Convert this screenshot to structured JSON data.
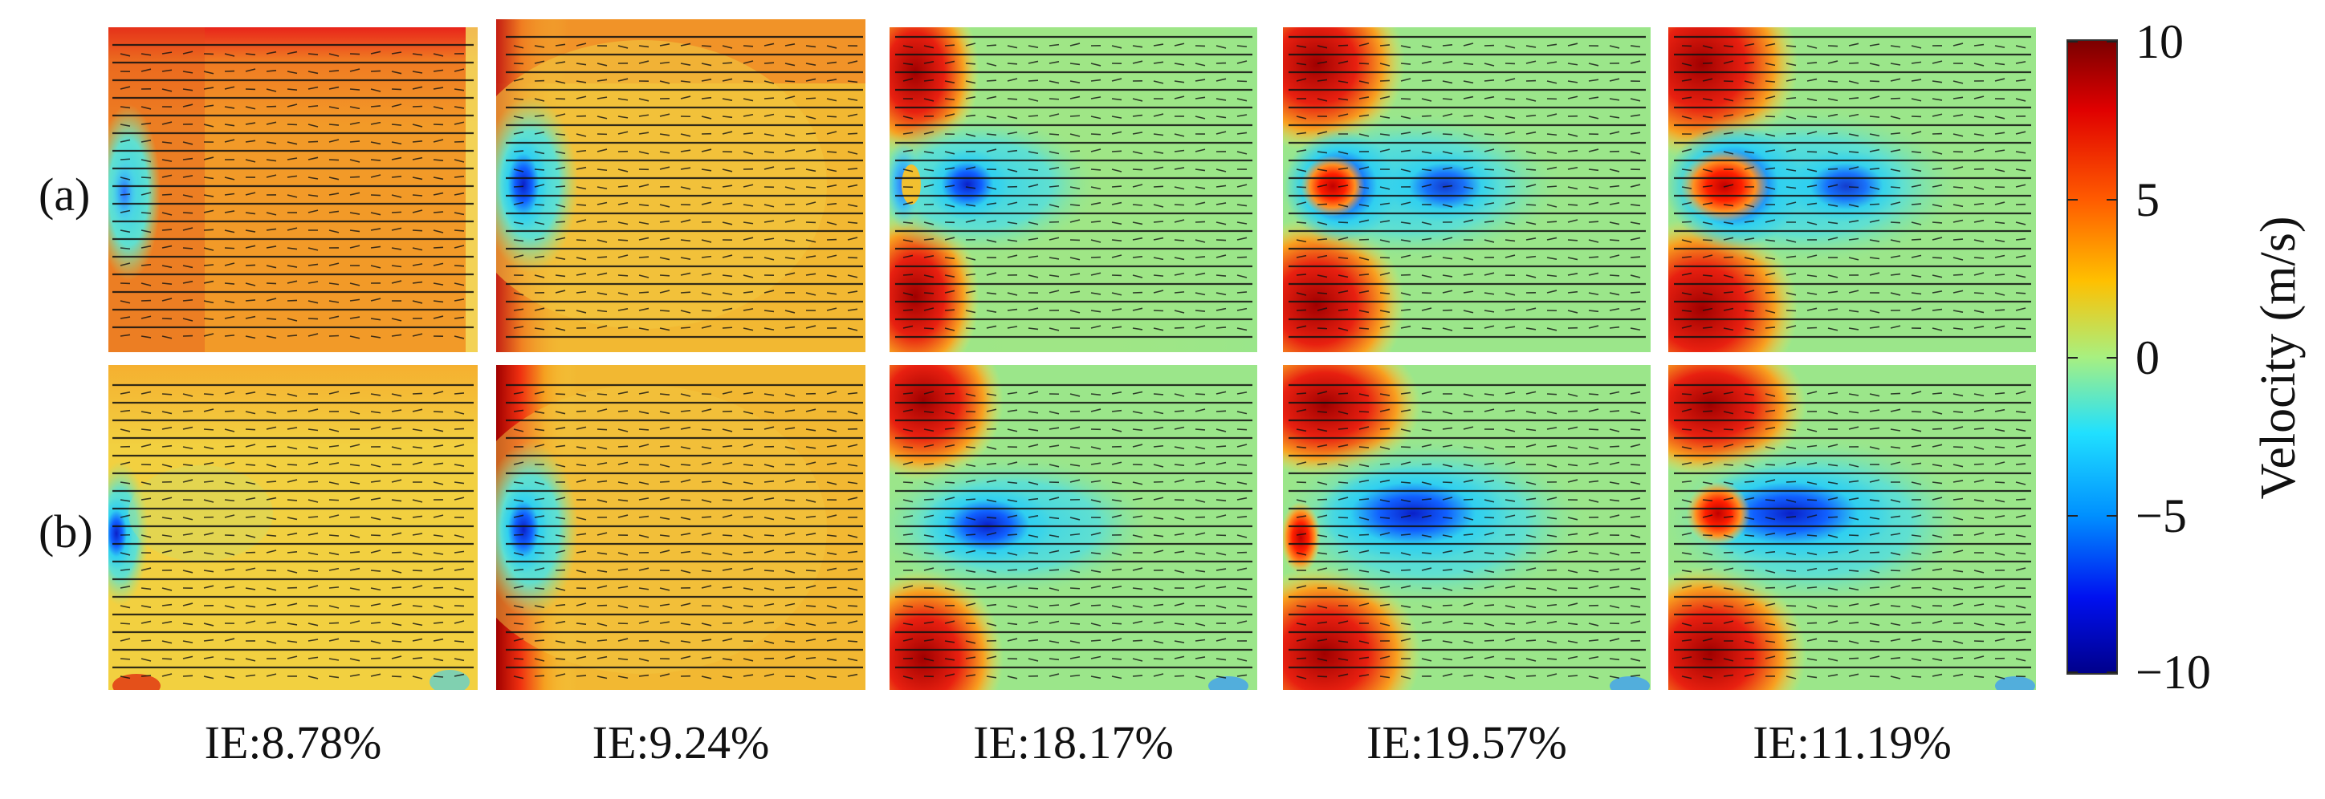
{
  "figure": {
    "row_labels": [
      "(a)",
      "(b)"
    ],
    "ie_labels": [
      "IE:8.78%",
      "IE:9.24%",
      "IE:18.17%",
      "IE:19.57%",
      "IE:11.19%"
    ],
    "colorbar": {
      "title": "Velocity (m/s)",
      "min": -10,
      "max": 10,
      "tick_labels": [
        "10",
        "5",
        "0",
        "−5",
        "−10"
      ],
      "colors": [
        "#800000",
        "#ff0000",
        "#ff8c00",
        "#ffff00",
        "#80ff80",
        "#00ffff",
        "#0080ff",
        "#0000ff",
        "#000090"
      ]
    },
    "panel_colors": {
      "orange_bg": "#f5a623",
      "yellow_bg": "#f2d541",
      "green_bg": "#9be68a",
      "dark_red": "#a50a0a",
      "blue_core": "#1030d0",
      "cyan": "#40d0f0"
    }
  }
}
